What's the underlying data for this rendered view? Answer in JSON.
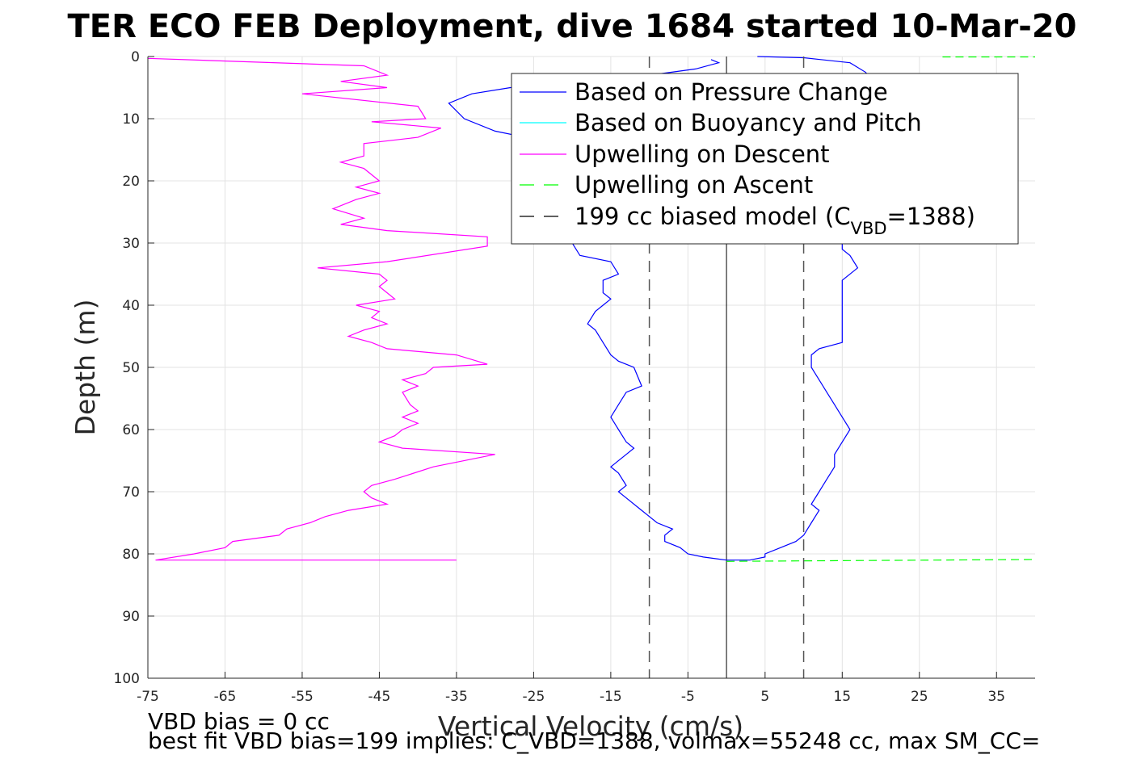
{
  "chart_data": {
    "type": "line",
    "title": "TER ECO FEB Deployment, dive 1684 started 10-Mar-20",
    "xlabel": "Vertical Velocity (cm/s)",
    "ylabel": "Depth (m)",
    "xlim": [
      -75,
      40
    ],
    "ylim": [
      0,
      100
    ],
    "y_reversed": true,
    "grid": true,
    "legend_position": "top-right",
    "xticks": [
      -75,
      -65,
      -55,
      -45,
      -35,
      -25,
      -15,
      -5,
      5,
      15,
      25,
      35
    ],
    "yticks": [
      0,
      10,
      20,
      30,
      40,
      50,
      60,
      70,
      80,
      90,
      100
    ],
    "xtick_labels": [
      "-75",
      "-65",
      "-55",
      "-45",
      "-35",
      "-25",
      "-15",
      "-5",
      "5",
      "15",
      "25",
      "35"
    ],
    "ytick_labels": [
      "0",
      "10",
      "20",
      "30",
      "40",
      "50",
      "60",
      "70",
      "80",
      "90",
      "100"
    ],
    "legend": [
      {
        "label": "Based on Pressure Change",
        "color": "#0000ff",
        "dash": "solid"
      },
      {
        "label": "Based on Buoyancy and Pitch",
        "color": "#00ffff",
        "dash": "solid"
      },
      {
        "label": "Upwelling on Descent",
        "color": "#ff00ff",
        "dash": "solid"
      },
      {
        "label": "Upwelling on Ascent",
        "color": "#00ff00",
        "dash": "dashed"
      },
      {
        "label_prefix": "199 cc biased model (C",
        "label_sub": "VBD",
        "label_suffix": "=1388)",
        "color": "#000000",
        "dash": "dashed"
      }
    ],
    "series": [
      {
        "name": "Upwelling on Descent",
        "color": "#ff00ff",
        "points": [
          [
            -75,
            0.3
          ],
          [
            -47,
            1.5
          ],
          [
            -44,
            3
          ],
          [
            -50,
            4
          ],
          [
            -44,
            5
          ],
          [
            -55,
            6
          ],
          [
            -40,
            8
          ],
          [
            -39,
            10
          ],
          [
            -46,
            10.5
          ],
          [
            -37,
            11.5
          ],
          [
            -40,
            13
          ],
          [
            -47,
            14
          ],
          [
            -47,
            16
          ],
          [
            -50,
            17
          ],
          [
            -47,
            18
          ],
          [
            -45,
            20
          ],
          [
            -48,
            21
          ],
          [
            -45,
            22
          ],
          [
            -48,
            23
          ],
          [
            -51,
            24.5
          ],
          [
            -47,
            26
          ],
          [
            -50,
            27
          ],
          [
            -44,
            28
          ],
          [
            -31,
            29
          ],
          [
            -31,
            30.5
          ],
          [
            -44,
            33
          ],
          [
            -53,
            34
          ],
          [
            -45,
            35
          ],
          [
            -44,
            36
          ],
          [
            -45,
            37
          ],
          [
            -43,
            39
          ],
          [
            -48,
            40
          ],
          [
            -45,
            41
          ],
          [
            -46,
            42
          ],
          [
            -44,
            43
          ],
          [
            -47,
            44
          ],
          [
            -49,
            45
          ],
          [
            -46,
            46
          ],
          [
            -44,
            47
          ],
          [
            -35,
            48
          ],
          [
            -31,
            49.5
          ],
          [
            -38,
            50
          ],
          [
            -39,
            51
          ],
          [
            -42,
            52
          ],
          [
            -40,
            53
          ],
          [
            -42,
            54
          ],
          [
            -41,
            56
          ],
          [
            -40,
            57
          ],
          [
            -42,
            58
          ],
          [
            -40,
            59
          ],
          [
            -42,
            60
          ],
          [
            -43,
            61
          ],
          [
            -45,
            62
          ],
          [
            -42,
            63
          ],
          [
            -30,
            64
          ],
          [
            -38,
            66
          ],
          [
            -43,
            68
          ],
          [
            -46,
            69
          ],
          [
            -47,
            70
          ],
          [
            -46,
            71
          ],
          [
            -44,
            72
          ],
          [
            -49,
            73
          ],
          [
            -52,
            74
          ],
          [
            -54,
            75
          ],
          [
            -57,
            76
          ],
          [
            -58,
            77
          ],
          [
            -64,
            78
          ],
          [
            -65,
            79
          ],
          [
            -69,
            80
          ],
          [
            -74,
            81
          ],
          [
            -35,
            81
          ]
        ]
      },
      {
        "name": "Based on Pressure Change",
        "color": "#0000ff",
        "points": [
          [
            -2,
            0.5
          ],
          [
            -1,
            1
          ],
          [
            -4,
            2
          ],
          [
            -10,
            3
          ],
          [
            -20,
            4
          ],
          [
            -28,
            5
          ],
          [
            -33,
            6
          ],
          [
            -36,
            7.5
          ],
          [
            -34,
            10
          ],
          [
            -30,
            12
          ],
          [
            -26,
            13
          ],
          [
            -22,
            14.5
          ],
          [
            -20,
            16
          ],
          [
            -19,
            18
          ],
          [
            -20,
            20
          ],
          [
            -18,
            22
          ],
          [
            -19,
            24
          ],
          [
            -19,
            27
          ],
          [
            -20,
            30
          ],
          [
            -19,
            32
          ],
          [
            -15,
            33
          ],
          [
            -14,
            35
          ],
          [
            -16,
            36
          ],
          [
            -16,
            38
          ],
          [
            -15,
            39
          ],
          [
            -16,
            40
          ],
          [
            -17,
            41
          ],
          [
            -18,
            43
          ],
          [
            -17,
            44
          ],
          [
            -16,
            46
          ],
          [
            -15,
            48
          ],
          [
            -14,
            49
          ],
          [
            -12,
            50
          ],
          [
            -11,
            53
          ],
          [
            -13,
            54
          ],
          [
            -14,
            56
          ],
          [
            -15,
            58
          ],
          [
            -14,
            60
          ],
          [
            -13,
            62
          ],
          [
            -12,
            63
          ],
          [
            -13,
            64
          ],
          [
            -15,
            66
          ],
          [
            -14,
            67
          ],
          [
            -13,
            69
          ],
          [
            -14,
            70
          ],
          [
            -13,
            71
          ],
          [
            -11,
            73
          ],
          [
            -9,
            75
          ],
          [
            -7,
            76
          ],
          [
            -8,
            77
          ],
          [
            -8,
            78
          ],
          [
            -6,
            79
          ],
          [
            -5,
            80
          ],
          [
            -3,
            80.5
          ],
          [
            0,
            81
          ],
          [
            3,
            81
          ],
          [
            5,
            80.5
          ],
          [
            5,
            80
          ],
          [
            7,
            79
          ],
          [
            9,
            78
          ],
          [
            10,
            77
          ],
          [
            11,
            75
          ],
          [
            12,
            73
          ],
          [
            11,
            72
          ],
          [
            12,
            70
          ],
          [
            13,
            68
          ],
          [
            14,
            66
          ],
          [
            14,
            64
          ],
          [
            15,
            62
          ],
          [
            16,
            60
          ],
          [
            15,
            58
          ],
          [
            14,
            56
          ],
          [
            13,
            54
          ],
          [
            12,
            52
          ],
          [
            11,
            50
          ],
          [
            11,
            48
          ],
          [
            12,
            47
          ],
          [
            15,
            46
          ],
          [
            15,
            44
          ],
          [
            15,
            42
          ],
          [
            15,
            40
          ],
          [
            15,
            38
          ],
          [
            15,
            36
          ],
          [
            17,
            34
          ],
          [
            16,
            32
          ],
          [
            15,
            31
          ],
          [
            15,
            29
          ],
          [
            16,
            27
          ],
          [
            17,
            25
          ],
          [
            18,
            23
          ],
          [
            19,
            20
          ],
          [
            18,
            18
          ],
          [
            19,
            15
          ],
          [
            19,
            12
          ],
          [
            18,
            10
          ],
          [
            19,
            8
          ],
          [
            20,
            5
          ],
          [
            18,
            2.5
          ],
          [
            16,
            1
          ],
          [
            10,
            0.2
          ],
          [
            4,
            0
          ]
        ]
      },
      {
        "name": "Upwelling on Ascent",
        "color": "#00ff00",
        "points_dashed": [
          [
            0,
            81.2
          ],
          [
            40,
            80.9
          ]
        ],
        "top_points": [
          [
            28,
            0
          ],
          [
            40,
            0
          ]
        ]
      },
      {
        "name": "199 cc biased model (C_VBD=1388)",
        "color": "#000000",
        "vertical_lines": [
          -10,
          10
        ]
      }
    ],
    "reference_line_x": 0
  },
  "notes": {
    "bias_note": "VBD bias = 0 cc",
    "fit_note": "best fit VBD bias=199 implies: C_VBD=1388, volmax=55248 cc, max SM_CC="
  }
}
